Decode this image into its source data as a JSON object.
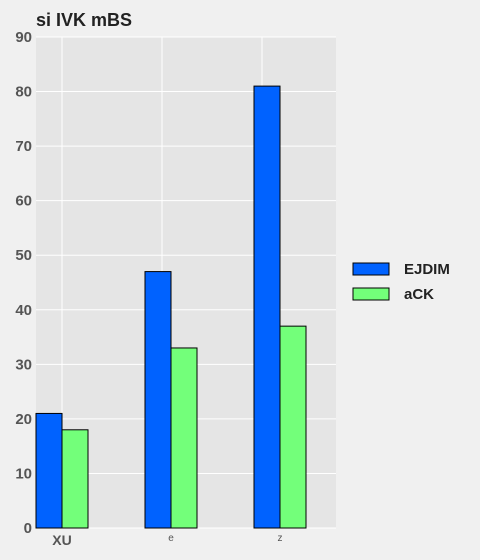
{
  "chart_data": {
    "type": "bar",
    "title": "si IVK mBS",
    "xlabel": "",
    "ylabel": "",
    "categories": [
      "XU",
      "e",
      "z"
    ],
    "category_bold": [
      true,
      false,
      false
    ],
    "series": [
      {
        "name": "EJDIM",
        "color": "#0062ff",
        "values": [
          21,
          47,
          81
        ]
      },
      {
        "name": "aCK",
        "color": "#73ff7a",
        "values": [
          18,
          33,
          37
        ]
      }
    ],
    "ylim": [
      0,
      90
    ],
    "yticks": [
      0,
      10,
      20,
      30,
      40,
      50,
      60,
      70,
      80,
      90
    ],
    "grid": true,
    "legend_position": "right",
    "plot_background": "#e5e5e5"
  }
}
